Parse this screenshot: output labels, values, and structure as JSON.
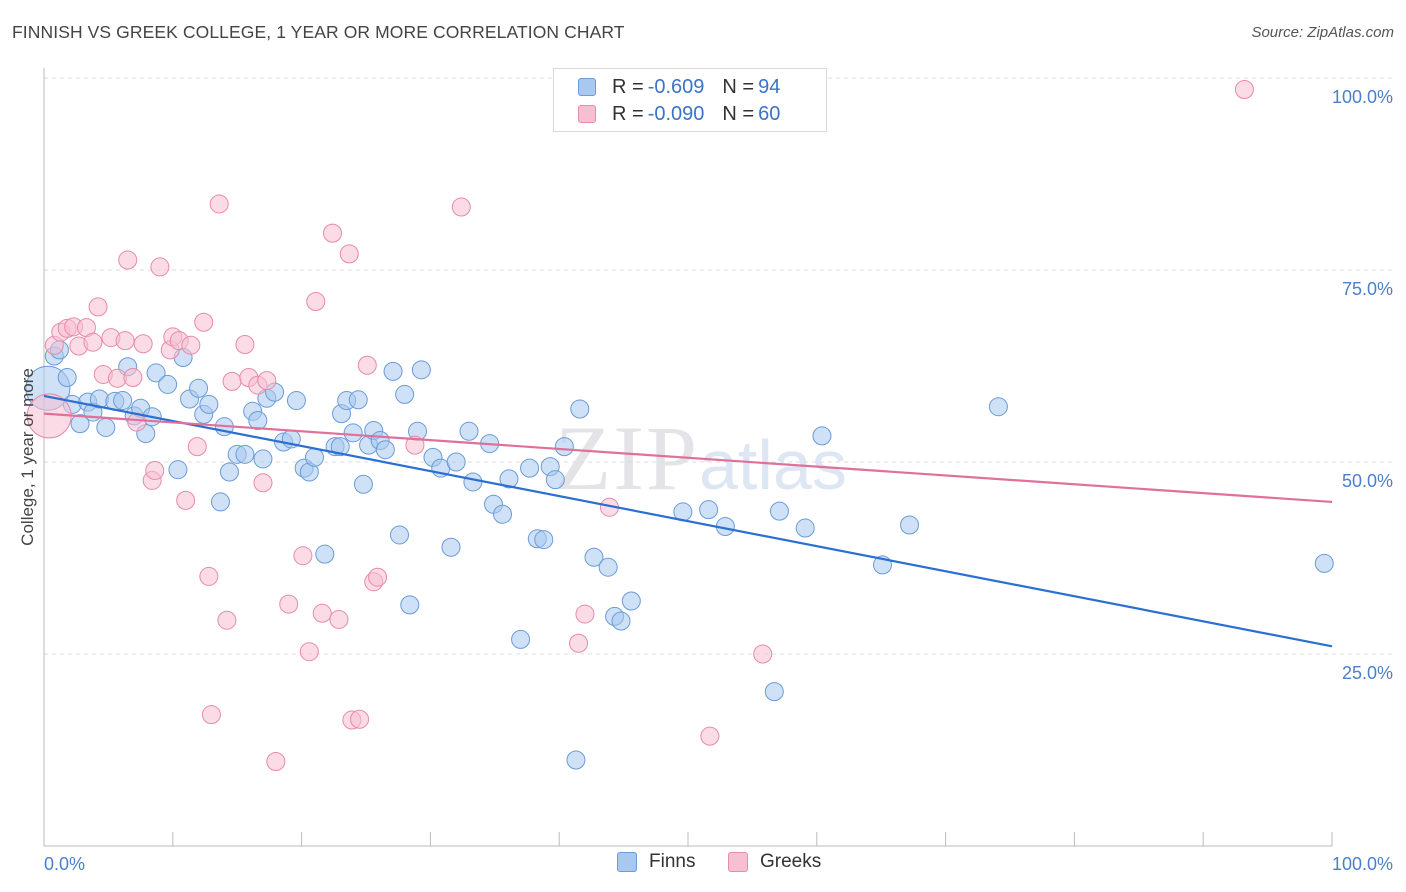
{
  "title": "FINNISH VS GREEK COLLEGE, 1 YEAR OR MORE CORRELATION CHART",
  "source": "Source: ZipAtlas.com",
  "watermark": {
    "zip": "ZIP",
    "atlas": "atlas"
  },
  "legend": {
    "rows": [
      {
        "r_label": "R =",
        "r_value": "-0.609",
        "n_label": "N =",
        "n_value": "94",
        "color": "#a8c8f0",
        "border": "#6b9bd8"
      },
      {
        "r_label": "R =",
        "r_value": "-0.090",
        "n_label": "N =",
        "n_value": "60",
        "color": "#f7c0d2",
        "border": "#e88aa8"
      }
    ]
  },
  "bottom_legend": [
    {
      "label": "Finns",
      "color": "#a8c8f0",
      "border": "#6b9bd8"
    },
    {
      "label": "Greeks",
      "color": "#f7c0d2",
      "border": "#e88aa8"
    }
  ],
  "chart_data": {
    "type": "scatter",
    "title": "FINNISH VS GREEK COLLEGE, 1 YEAR OR MORE CORRELATION CHART",
    "xlabel": "",
    "ylabel": "College, 1 year or more",
    "xlim": [
      0,
      100
    ],
    "ylim": [
      0,
      102
    ],
    "x_tick_labels": [
      "0.0%",
      "100.0%"
    ],
    "y_ticks": [
      25,
      50,
      75,
      100
    ],
    "y_tick_labels": [
      "25.0%",
      "50.0%",
      "75.0%",
      "100.0%"
    ],
    "grid": "horizontal dashed",
    "legend_position": "top-center",
    "series": [
      {
        "name": "Finns",
        "color": "#a8c8f0",
        "stroke": "#6b9bd8",
        "line_color": "#2a6fd1",
        "trend": {
          "x": [
            0,
            100
          ],
          "y": [
            58.6,
            26.0
          ]
        },
        "points": [
          [
            0.3,
            59.6
          ],
          [
            0.8,
            63.8
          ],
          [
            1.2,
            64.6
          ],
          [
            1.8,
            61.0
          ],
          [
            2.2,
            57.5
          ],
          [
            2.8,
            55.0
          ],
          [
            3.4,
            57.8
          ],
          [
            3.8,
            56.5
          ],
          [
            4.3,
            58.2
          ],
          [
            4.8,
            54.5
          ],
          [
            5.5,
            57.9
          ],
          [
            6.1,
            58.0
          ],
          [
            6.5,
            62.4
          ],
          [
            7.0,
            56.0
          ],
          [
            7.5,
            57.0
          ],
          [
            7.9,
            53.7
          ],
          [
            8.4,
            55.9
          ],
          [
            8.7,
            61.6
          ],
          [
            9.6,
            60.1
          ],
          [
            10.4,
            49.0
          ],
          [
            10.8,
            63.6
          ],
          [
            11.3,
            58.2
          ],
          [
            12.0,
            59.6
          ],
          [
            12.4,
            56.2
          ],
          [
            12.8,
            57.5
          ],
          [
            13.7,
            44.8
          ],
          [
            14.0,
            54.6
          ],
          [
            14.4,
            48.7
          ],
          [
            15.0,
            51.0
          ],
          [
            15.6,
            51.0
          ],
          [
            16.2,
            56.6
          ],
          [
            16.6,
            55.4
          ],
          [
            17.0,
            50.4
          ],
          [
            17.3,
            58.3
          ],
          [
            17.9,
            59.1
          ],
          [
            18.6,
            52.6
          ],
          [
            19.2,
            53.0
          ],
          [
            19.6,
            58.0
          ],
          [
            20.2,
            49.2
          ],
          [
            20.6,
            48.7
          ],
          [
            21.0,
            50.6
          ],
          [
            21.8,
            38.0
          ],
          [
            22.6,
            52.0
          ],
          [
            23.1,
            56.3
          ],
          [
            23.5,
            58.0
          ],
          [
            24.0,
            53.8
          ],
          [
            24.4,
            58.1
          ],
          [
            24.8,
            47.1
          ],
          [
            25.2,
            52.2
          ],
          [
            25.6,
            54.1
          ],
          [
            26.1,
            52.8
          ],
          [
            26.5,
            51.6
          ],
          [
            27.1,
            61.8
          ],
          [
            27.6,
            40.5
          ],
          [
            28.0,
            58.8
          ],
          [
            28.4,
            31.4
          ],
          [
            29.0,
            54.0
          ],
          [
            29.3,
            62.0
          ],
          [
            30.2,
            50.6
          ],
          [
            30.8,
            49.2
          ],
          [
            31.6,
            38.9
          ],
          [
            32.0,
            50.0
          ],
          [
            33.0,
            54.0
          ],
          [
            33.3,
            47.4
          ],
          [
            34.6,
            52.4
          ],
          [
            34.9,
            44.5
          ],
          [
            35.6,
            43.2
          ],
          [
            36.1,
            47.8
          ],
          [
            37.0,
            26.9
          ],
          [
            37.7,
            49.2
          ],
          [
            38.3,
            40.0
          ],
          [
            38.8,
            39.9
          ],
          [
            39.3,
            49.4
          ],
          [
            39.7,
            47.7
          ],
          [
            40.4,
            52.0
          ],
          [
            41.3,
            11.2
          ],
          [
            41.6,
            56.9
          ],
          [
            42.7,
            37.6
          ],
          [
            43.8,
            36.3
          ],
          [
            44.3,
            29.9
          ],
          [
            44.8,
            29.3
          ],
          [
            45.6,
            31.9
          ],
          [
            49.6,
            43.5
          ],
          [
            51.6,
            43.8
          ],
          [
            52.9,
            41.6
          ],
          [
            56.7,
            20.1
          ],
          [
            57.1,
            43.6
          ],
          [
            59.1,
            41.4
          ],
          [
            60.4,
            53.4
          ],
          [
            65.1,
            36.6
          ],
          [
            67.2,
            41.8
          ],
          [
            74.1,
            57.2
          ],
          [
            99.4,
            36.8
          ],
          [
            23.0,
            52.0
          ]
        ]
      },
      {
        "name": "Greeks",
        "color": "#f7c0d2",
        "stroke": "#e88aa8",
        "line_color": "#e0709a",
        "trend": {
          "x": [
            0,
            100
          ],
          "y": [
            56.3,
            44.8
          ]
        },
        "points": [
          [
            0.4,
            56.0
          ],
          [
            0.8,
            65.2
          ],
          [
            1.3,
            66.9
          ],
          [
            1.8,
            67.4
          ],
          [
            2.3,
            67.6
          ],
          [
            2.7,
            65.1
          ],
          [
            3.3,
            67.5
          ],
          [
            3.8,
            65.6
          ],
          [
            4.2,
            70.2
          ],
          [
            4.6,
            61.4
          ],
          [
            5.2,
            66.2
          ],
          [
            5.7,
            60.9
          ],
          [
            6.3,
            65.8
          ],
          [
            6.5,
            76.3
          ],
          [
            6.9,
            61.0
          ],
          [
            7.2,
            55.2
          ],
          [
            7.7,
            65.4
          ],
          [
            8.4,
            47.6
          ],
          [
            8.6,
            48.9
          ],
          [
            9.0,
            75.4
          ],
          [
            9.8,
            64.6
          ],
          [
            10.0,
            66.3
          ],
          [
            10.5,
            65.8
          ],
          [
            11.0,
            45.0
          ],
          [
            11.4,
            65.2
          ],
          [
            11.9,
            52.0
          ],
          [
            12.4,
            68.2
          ],
          [
            12.8,
            35.1
          ],
          [
            13.0,
            17.1
          ],
          [
            13.6,
            83.6
          ],
          [
            14.2,
            29.4
          ],
          [
            14.6,
            60.5
          ],
          [
            15.6,
            65.3
          ],
          [
            15.9,
            61.0
          ],
          [
            16.6,
            60.0
          ],
          [
            17.0,
            47.3
          ],
          [
            17.3,
            60.6
          ],
          [
            18.0,
            11.0
          ],
          [
            19.0,
            31.5
          ],
          [
            20.1,
            37.8
          ],
          [
            20.6,
            25.3
          ],
          [
            21.1,
            70.9
          ],
          [
            21.6,
            30.3
          ],
          [
            22.4,
            79.8
          ],
          [
            22.9,
            29.5
          ],
          [
            23.7,
            77.1
          ],
          [
            23.9,
            16.4
          ],
          [
            24.5,
            16.5
          ],
          [
            25.1,
            62.6
          ],
          [
            25.6,
            34.4
          ],
          [
            25.9,
            35.0
          ],
          [
            28.8,
            52.2
          ],
          [
            32.4,
            83.2
          ],
          [
            41.5,
            26.4
          ],
          [
            42.0,
            30.2
          ],
          [
            43.9,
            44.1
          ],
          [
            55.8,
            25.0
          ],
          [
            51.7,
            14.3
          ],
          [
            93.2,
            98.5
          ],
          [
            59.8,
            100.0
          ]
        ]
      }
    ]
  }
}
